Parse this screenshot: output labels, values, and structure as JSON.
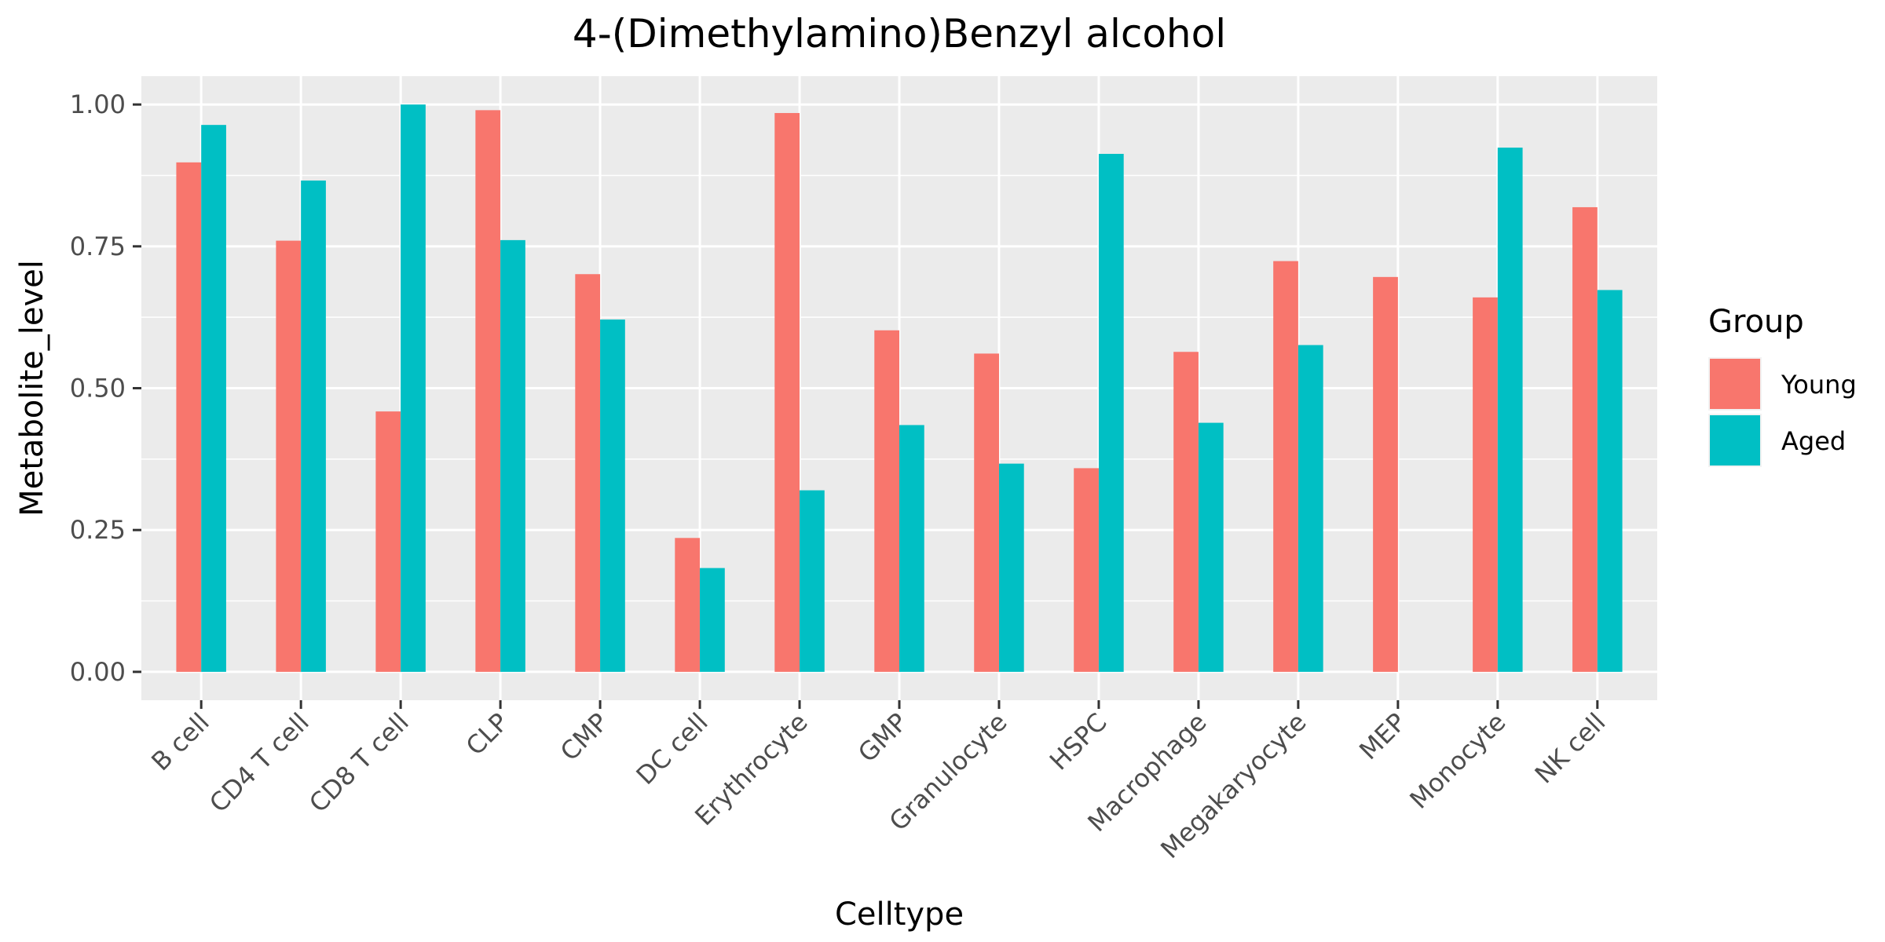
{
  "chart_data": {
    "type": "bar",
    "title": "4-(Dimethylamino)Benzyl alcohol",
    "xlabel": "Celltype",
    "ylabel": "Metabolite_level",
    "ylim": [
      -0.05,
      1.05
    ],
    "yticks": [
      0.0,
      0.25,
      0.5,
      0.75,
      1.0
    ],
    "ytick_labels": [
      "0.00",
      "0.25",
      "0.50",
      "0.75",
      "1.00"
    ],
    "grid": true,
    "legend_position": "right",
    "legend_title": "Group",
    "categories": [
      "B cell",
      "CD4 T cell",
      "CD8 T cell",
      "CLP",
      "CMP",
      "DC cell",
      "Erythrocyte",
      "GMP",
      "Granulocyte",
      "HSPC",
      "Macrophage",
      "Megakaryocyte",
      "MEP",
      "Monocyte",
      "NK cell"
    ],
    "series": [
      {
        "name": "Young",
        "color": "#F8766D",
        "values": [
          0.898,
          0.76,
          0.459,
          0.99,
          0.701,
          0.236,
          0.985,
          0.602,
          0.561,
          0.359,
          0.564,
          0.724,
          0.696,
          0.66,
          0.819
        ]
      },
      {
        "name": "Aged",
        "color": "#00BFC4",
        "values": [
          0.964,
          0.866,
          1.0,
          0.761,
          0.621,
          0.183,
          0.32,
          0.435,
          0.367,
          0.913,
          0.439,
          0.576,
          null,
          0.924,
          0.673
        ]
      }
    ]
  }
}
